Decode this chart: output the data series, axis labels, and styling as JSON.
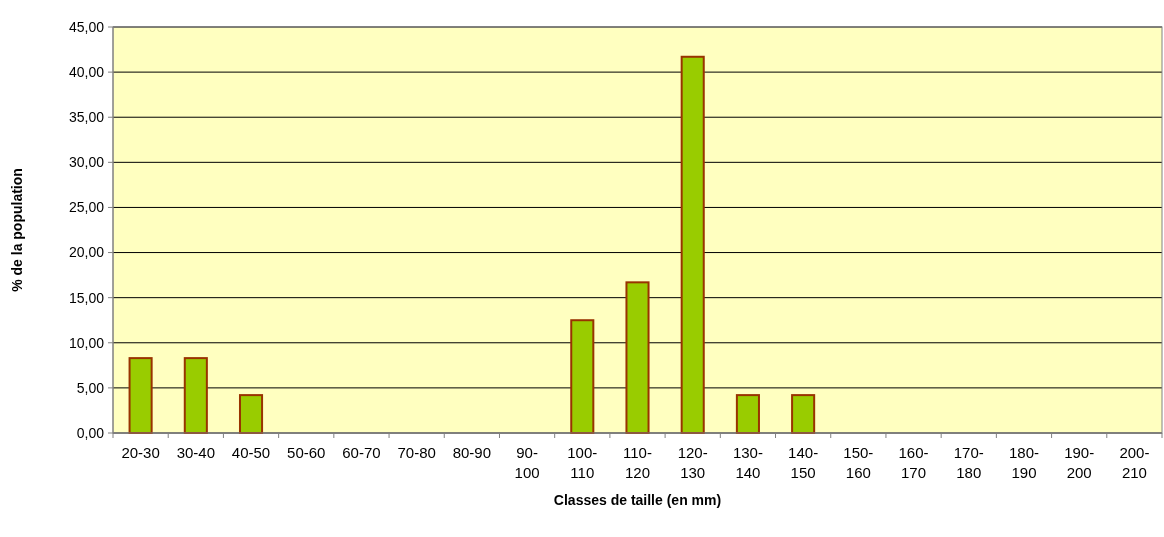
{
  "chart_data": {
    "type": "bar",
    "xlabel": "Classes de taille (en mm)",
    "ylabel": "% de la population",
    "categories": [
      "20-30",
      "30-40",
      "40-50",
      "50-60",
      "60-70",
      "70-80",
      "80-90",
      "90-100",
      "100-110",
      "110-120",
      "120-130",
      "130-140",
      "140-150",
      "150-160",
      "160-170",
      "170-180",
      "180-190",
      "190-200",
      "200-210"
    ],
    "values": [
      8.3,
      8.3,
      4.2,
      0,
      0,
      0,
      0,
      0,
      12.5,
      16.7,
      41.7,
      4.2,
      4.2,
      0,
      0,
      0,
      0,
      0,
      0
    ],
    "color": "#99cc00",
    "ylim": [
      0,
      45
    ],
    "yticks": [
      {
        "value": 0,
        "label": "0,00"
      },
      {
        "value": 5,
        "label": "5,00"
      },
      {
        "value": 10,
        "label": "10,00"
      },
      {
        "value": 15,
        "label": "15,00"
      },
      {
        "value": 20,
        "label": "20,00"
      },
      {
        "value": 25,
        "label": "25,00"
      },
      {
        "value": 30,
        "label": "30,00"
      },
      {
        "value": 35,
        "label": "35,00"
      },
      {
        "value": 40,
        "label": "40,00"
      },
      {
        "value": 45,
        "label": "45,00"
      }
    ],
    "grid": "y"
  }
}
